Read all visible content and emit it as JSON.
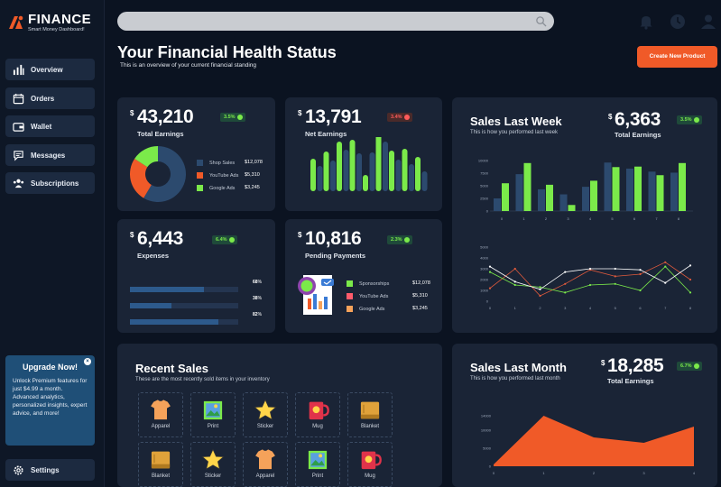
{
  "app": {
    "logo_text": "FINANCE",
    "logo_sub": "Smart Money Dashboard!"
  },
  "sidebar": {
    "items": [
      {
        "label": "Overview",
        "icon": "bar-chart-icon"
      },
      {
        "label": "Orders",
        "icon": "calendar-icon"
      },
      {
        "label": "Wallet",
        "icon": "wallet-icon"
      },
      {
        "label": "Messages",
        "icon": "messages-icon"
      },
      {
        "label": "Subscriptions",
        "icon": "users-icon"
      }
    ],
    "settings_label": "Settings",
    "upgrade": {
      "title": "Upgrade Now!",
      "text": "Unlock Premium features for just $4.99 a month. Advanced analytics, personalized insights, expert advice, and more!"
    }
  },
  "header": {
    "search_placeholder": "",
    "title": "Your Financial Health Status",
    "subtitle": "This is an overview of your current financial standing",
    "create_button": "Create New Product"
  },
  "colors": {
    "accent": "#f05a28",
    "green": "#7bea4a",
    "navy": "#2c4a6e",
    "card": "#1a2436",
    "bg": "#0b1321"
  },
  "cards": {
    "total_earnings": {
      "currency": "$",
      "value": "43,210",
      "label": "Total Earnings",
      "badge": "3.5%",
      "legend": [
        {
          "name": "Shop Sales",
          "value": "$12,078",
          "color": "#2c4a6e"
        },
        {
          "name": "YouTube Ads",
          "value": "$5,310",
          "color": "#f05a28"
        },
        {
          "name": "Google Ads",
          "value": "$3,245",
          "color": "#7bea4a"
        }
      ]
    },
    "net_earnings": {
      "currency": "$",
      "value": "13,791",
      "label": "Net Earnings",
      "badge": "3.4%"
    },
    "expenses": {
      "currency": "$",
      "value": "6,443",
      "label": "Expenses",
      "badge": "6.4%",
      "bars": [
        {
          "pct": "68",
          "unit": "%",
          "fill": 0.68
        },
        {
          "pct": "38",
          "unit": "%",
          "fill": 0.38
        },
        {
          "pct": "82",
          "unit": "%",
          "fill": 0.82
        }
      ]
    },
    "pending": {
      "currency": "$",
      "value": "10,816",
      "label": "Pending Payments",
      "badge": "2.3%",
      "legend": [
        {
          "name": "Sponsorships",
          "value": "$12,078",
          "color": "#7bea4a"
        },
        {
          "name": "YouTube Ads",
          "value": "$5,310",
          "color": "#ff5b6b"
        },
        {
          "name": "Google Ads",
          "value": "$3,245",
          "color": "#f5a25a"
        }
      ]
    },
    "sales_week": {
      "title": "Sales Last Week",
      "subtitle": "This is how you performed last week",
      "currency": "$",
      "value": "6,363",
      "label": "Total Earnings",
      "badge": "3.5%"
    },
    "recent_sales": {
      "title": "Recent Sales",
      "subtitle": "These are the most recently sold items in your inventory",
      "items": [
        {
          "label": "Apparel",
          "icon": "tshirt-icon"
        },
        {
          "label": "Print",
          "icon": "picture-icon"
        },
        {
          "label": "Sticker",
          "icon": "star-icon"
        },
        {
          "label": "Mug",
          "icon": "mug-icon"
        },
        {
          "label": "Blanket",
          "icon": "blanket-icon"
        },
        {
          "label": "Blanket",
          "icon": "blanket-icon"
        },
        {
          "label": "Sticker",
          "icon": "star-icon"
        },
        {
          "label": "Apparel",
          "icon": "tshirt-icon"
        },
        {
          "label": "Print",
          "icon": "picture-icon"
        },
        {
          "label": "Mug",
          "icon": "mug-icon"
        }
      ]
    },
    "sales_month": {
      "title": "Sales Last Month",
      "subtitle": "This is how you performed last month",
      "currency": "$",
      "value": "18,285",
      "label": "Total Earnings",
      "badge": "6.7%"
    }
  },
  "chart_data": [
    {
      "type": "pie",
      "title": "Total Earnings",
      "categories": [
        "Shop Sales",
        "YouTube Ads",
        "Google Ads"
      ],
      "values": [
        12078,
        5310,
        3245
      ]
    },
    {
      "type": "bar",
      "title": "Net Earnings",
      "series": [
        {
          "color": "#7bea4a",
          "values": [
            36,
            44,
            55,
            57,
            18,
            76,
            45,
            47,
            38
          ]
        },
        {
          "color": "#2c4a6e",
          "values": [
            28,
            34,
            46,
            42,
            43,
            55,
            35,
            30,
            22
          ]
        }
      ]
    },
    {
      "type": "bar",
      "title": "Sales Last Week",
      "categories": [
        "0",
        "1",
        "2",
        "3",
        "4",
        "5",
        "6",
        "7",
        "8"
      ],
      "ylim": [
        0,
        10000
      ],
      "yticks": [
        "0",
        "2500",
        "5000",
        "7500",
        "10000"
      ],
      "series": [
        {
          "color": "#2c4a6e",
          "values": [
            2500,
            7300,
            4300,
            3300,
            4800,
            9600,
            8400,
            7800,
            7600
          ]
        },
        {
          "color": "#7bea4a",
          "values": [
            5500,
            9500,
            5200,
            1200,
            6000,
            8700,
            8800,
            7100,
            9500
          ]
        }
      ]
    },
    {
      "type": "line",
      "categories": [
        "0",
        "1",
        "2",
        "3",
        "4",
        "5",
        "6",
        "7",
        "8"
      ],
      "ylim": [
        0,
        5000
      ],
      "yticks": [
        "0",
        "1000",
        "2000",
        "3000",
        "4000",
        "5000"
      ],
      "series": [
        {
          "color": "#e05a3c",
          "values": [
            1200,
            3000,
            500,
            1600,
            2900,
            2300,
            2500,
            3600,
            2000
          ]
        },
        {
          "color": "#7bea4a",
          "values": [
            2700,
            1500,
            1300,
            800,
            1500,
            1600,
            1000,
            3200,
            800
          ]
        },
        {
          "color": "#ffffff",
          "values": [
            3200,
            1800,
            1100,
            2700,
            3000,
            3000,
            2900,
            1700,
            3300
          ]
        }
      ]
    },
    {
      "type": "area",
      "title": "Sales Last Month",
      "categories": [
        "0",
        "1",
        "2",
        "3",
        "4"
      ],
      "ylim": [
        0,
        15000
      ],
      "yticks": [
        "0",
        "5000",
        "10000",
        "14000"
      ],
      "values": [
        500,
        14000,
        8000,
        6500,
        11000
      ]
    }
  ]
}
